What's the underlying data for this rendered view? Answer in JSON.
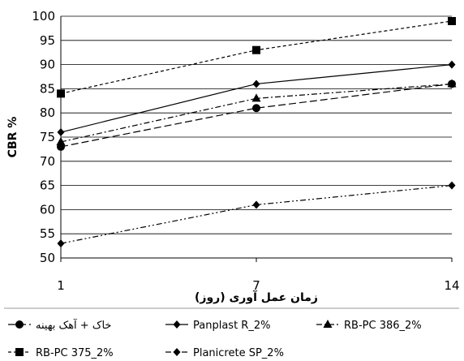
{
  "chart_data": {
    "type": "line",
    "title": "",
    "xlabel": "زمان عمل آوری (روز)",
    "ylabel": "CBR %",
    "categories": [
      "1",
      "7",
      "14"
    ],
    "ylim": [
      50,
      100
    ],
    "y_ticks": [
      50,
      55,
      60,
      65,
      70,
      75,
      80,
      85,
      90,
      95,
      100
    ],
    "grid": "horizontal",
    "legend_placement": "bottom",
    "series": [
      {
        "name": "خاک + آهک بهینه",
        "values": [
          73,
          81,
          86
        ],
        "marker": "circle",
        "dash": "long-dash"
      },
      {
        "name": "Panplast R_2%",
        "values": [
          76,
          86,
          90
        ],
        "marker": "diamond",
        "dash": "solid"
      },
      {
        "name": "RB-PC 386_2%",
        "values": [
          74,
          83,
          86
        ],
        "marker": "triangle",
        "dash": "dash-dot"
      },
      {
        "name": "RB-PC 375_2%",
        "values": [
          84,
          93,
          99
        ],
        "marker": "square",
        "dash": "short-dash"
      },
      {
        "name": "Planicrete SP_2%",
        "values": [
          53,
          61,
          65
        ],
        "marker": "diamond",
        "dash": "dash-dot-dot"
      }
    ]
  }
}
